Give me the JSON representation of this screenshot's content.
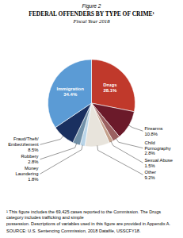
{
  "chart_data": {
    "type": "pie",
    "figure_label": "Figure 2",
    "title": "FEDERAL OFFENDERS BY TYPE OF CRIME¹",
    "subtitle": "Fiscal Year 2018",
    "categories": [
      "Drugs",
      "Firearms",
      "Child\nPornography",
      "Sexual Abuse",
      "Other",
      "Money\nLaundering",
      "Robbery",
      "Fraud/Theft/\nEmbezzlement",
      "Immigration"
    ],
    "values": [
      28.1,
      10.8,
      2.8,
      1.5,
      9.2,
      1.8,
      2.8,
      8.5,
      34.4
    ],
    "value_labels": [
      "28.1%",
      "10.8%",
      "2.8%",
      "1.5%",
      "9.2%",
      "1.8%",
      "2.8%",
      "8.5%",
      "34.4%"
    ],
    "colors": [
      "#c0392b",
      "#6b1a2a",
      "#9b6060",
      "#c4a08a",
      "#e8e4dc",
      "#b8d4e8",
      "#7090a8",
      "#1a3060",
      "#5b9bd5"
    ],
    "data_labels": true,
    "notes": [
      "¹ This figure includes the 69,425 cases reported to the Commission. The Drugs category includes trafficking and simple\npossession. Descriptions of variables used in this figure are provided in Appendix A.",
      "SOURCE: U.S. Sentencing Commission, 2018 Datafile, USSCFY18."
    ]
  }
}
